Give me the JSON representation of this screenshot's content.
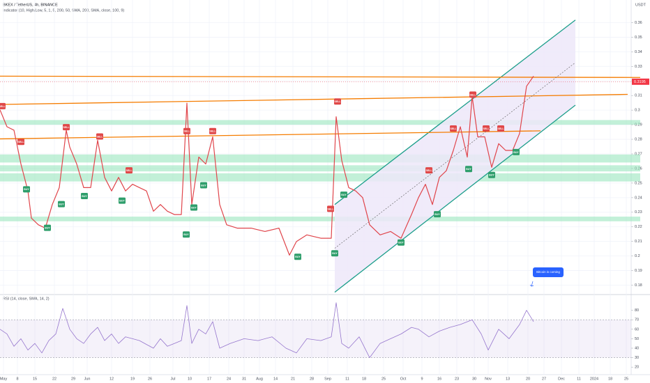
{
  "chart_data": [
    {
      "type": "line",
      "title": "BKEX / TetherUS, 4h, BINANCE",
      "subtitle": "Indicator (10, High/Low, 5, 1, 5, 200, 50, SMA, 200, SMA, close, 100, 9)",
      "unit": "USDT",
      "annotation": "Bitcoin is coming",
      "xlim": [
        0,
        905
      ],
      "ylim": [
        0.175,
        0.365
      ],
      "yticks": [
        0.18,
        0.19,
        0.2,
        0.21,
        0.22,
        0.23,
        0.24,
        0.25,
        0.26,
        0.27,
        0.28,
        0.29,
        0.3,
        0.31,
        0.32,
        0.33,
        0.34,
        0.35,
        0.36
      ],
      "xticks": [
        {
          "value": 5,
          "label": "May"
        },
        {
          "value": 25,
          "label": "8"
        },
        {
          "value": 50,
          "label": "15"
        },
        {
          "value": 78,
          "label": "22"
        },
        {
          "value": 105,
          "label": "29"
        },
        {
          "value": 125,
          "label": "Jun"
        },
        {
          "value": 160,
          "label": "12"
        },
        {
          "value": 190,
          "label": "19"
        },
        {
          "value": 215,
          "label": "26"
        },
        {
          "value": 248,
          "label": "Jul"
        },
        {
          "value": 272,
          "label": "10"
        },
        {
          "value": 300,
          "label": "17"
        },
        {
          "value": 328,
          "label": "24"
        },
        {
          "value": 350,
          "label": "31"
        },
        {
          "value": 372,
          "label": "Aug"
        },
        {
          "value": 395,
          "label": "14"
        },
        {
          "value": 420,
          "label": "21"
        },
        {
          "value": 447,
          "label": "28"
        },
        {
          "value": 470,
          "label": "Sep"
        },
        {
          "value": 498,
          "label": "11"
        },
        {
          "value": 522,
          "label": "18"
        },
        {
          "value": 550,
          "label": "25"
        },
        {
          "value": 578,
          "label": "Oct"
        },
        {
          "value": 605,
          "label": "9"
        },
        {
          "value": 630,
          "label": "16"
        },
        {
          "value": 655,
          "label": "23"
        },
        {
          "value": 680,
          "label": "30"
        },
        {
          "value": 700,
          "label": "Nov"
        },
        {
          "value": 728,
          "label": "13"
        },
        {
          "value": 757,
          "label": "20"
        },
        {
          "value": 780,
          "label": "27"
        },
        {
          "value": 805,
          "label": "Dec"
        },
        {
          "value": 830,
          "label": "11"
        },
        {
          "value": 852,
          "label": "2024"
        },
        {
          "value": 875,
          "label": "18"
        },
        {
          "value": 898,
          "label": "25"
        }
      ],
      "grid": true,
      "last_price": 0.3195,
      "last_price_color": "#f23645",
      "series": [
        {
          "name": "BKEXUSDT",
          "color": "#e0454b",
          "x": [
            0,
            10,
            20,
            30,
            40,
            45,
            55,
            65,
            75,
            85,
            95,
            100,
            110,
            120,
            130,
            140,
            150,
            160,
            170,
            180,
            190,
            200,
            210,
            220,
            230,
            240,
            250,
            260,
            268,
            275,
            285,
            295,
            305,
            315,
            325,
            340,
            360,
            380,
            400,
            415,
            425,
            440,
            460,
            475,
            482,
            490,
            500,
            510,
            520,
            530,
            545,
            560,
            575,
            590,
            600,
            610,
            620,
            630,
            640,
            650,
            660,
            670,
            677,
            685,
            695,
            705,
            715,
            725,
            735,
            745,
            755,
            765
          ],
          "values": [
            0.3002,
            0.2886,
            0.2863,
            0.2631,
            0.2446,
            0.226,
            0.2214,
            0.2191,
            0.2353,
            0.2469,
            0.2863,
            0.2747,
            0.2631,
            0.2469,
            0.2469,
            0.2793,
            0.2539,
            0.2446,
            0.2539,
            0.2446,
            0.2492,
            0.2469,
            0.2446,
            0.2307,
            0.2353,
            0.2307,
            0.2284,
            0.2284,
            0.3048,
            0.2353,
            0.2678,
            0.2631,
            0.2817,
            0.2353,
            0.2214,
            0.2191,
            0.2191,
            0.2168,
            0.2191,
            0.2006,
            0.2099,
            0.2145,
            0.2122,
            0.2122,
            0.2955,
            0.2655,
            0.2469,
            0.2446,
            0.24,
            0.2214,
            0.2145,
            0.2168,
            0.2122,
            0.2284,
            0.24,
            0.2492,
            0.2353,
            0.2539,
            0.2585,
            0.2724,
            0.2886,
            0.2678,
            0.3094,
            0.2817,
            0.2817,
            0.2608,
            0.277,
            0.2724,
            0.2724,
            0.284,
            0.3164,
            0.3233
          ]
        }
      ],
      "zones": [
        {
          "from": 0.29,
          "to": 0.2932
        },
        {
          "from": 0.2641,
          "to": 0.2696
        },
        {
          "from": 0.258,
          "to": 0.2622
        },
        {
          "from": 0.2511,
          "to": 0.2567
        },
        {
          "from": 0.2238,
          "to": 0.227
        }
      ],
      "zone_color": "#8fe3b8",
      "channel": {
        "x": [
          480,
          825
        ],
        "upper": [
          0.2353,
          0.3618
        ],
        "lower": [
          0.1752,
          0.3034
        ],
        "color": "#1b9e8a",
        "fill": "#ede7f9"
      },
      "trendlines": [
        {
          "x": [
            0,
            918
          ],
          "y": [
            0.3233,
            0.3224
          ],
          "color": "#f57c00"
        },
        {
          "x": [
            0,
            900
          ],
          "y": [
            0.3039,
            0.3108
          ],
          "color": "#f57c00"
        },
        {
          "x": [
            0,
            775
          ],
          "y": [
            0.2803,
            0.2858
          ],
          "color": "#f57c00"
        },
        {
          "x": [
            480,
            825
          ],
          "y": [
            0.2053,
            0.3326
          ],
          "color": "#555555",
          "dashed": true
        }
      ],
      "signals": [
        {
          "x": 3,
          "y": 0.3025,
          "label": "SELL"
        },
        {
          "x": 30,
          "y": 0.278,
          "label": "SELL"
        },
        {
          "x": 38,
          "y": 0.2455,
          "label": "BUY"
        },
        {
          "x": 68,
          "y": 0.2191,
          "label": "BUY"
        },
        {
          "x": 88,
          "y": 0.2353,
          "label": "BUY"
        },
        {
          "x": 95,
          "y": 0.2881,
          "label": "SELL"
        },
        {
          "x": 143,
          "y": 0.2817,
          "label": "SELL"
        },
        {
          "x": 121,
          "y": 0.2409,
          "label": "BUY"
        },
        {
          "x": 185,
          "y": 0.2585,
          "label": "SELL"
        },
        {
          "x": 175,
          "y": 0.2377,
          "label": "BUY"
        },
        {
          "x": 268,
          "y": 0.2854,
          "label": "SELL"
        },
        {
          "x": 278,
          "y": 0.233,
          "label": "BUY"
        },
        {
          "x": 292,
          "y": 0.2483,
          "label": "BUY"
        },
        {
          "x": 305,
          "y": 0.2854,
          "label": "SELL"
        },
        {
          "x": 267,
          "y": 0.2145,
          "label": "BUY"
        },
        {
          "x": 427,
          "y": 0.1992,
          "label": "BUY"
        },
        {
          "x": 474,
          "y": 0.2321,
          "label": "SELL"
        },
        {
          "x": 480,
          "y": 0.2016,
          "label": "BUY"
        },
        {
          "x": 484,
          "y": 0.3057,
          "label": "SELL"
        },
        {
          "x": 493,
          "y": 0.2418,
          "label": "BUY"
        },
        {
          "x": 575,
          "y": 0.209,
          "label": "BUY"
        },
        {
          "x": 615,
          "y": 0.2585,
          "label": "SELL"
        },
        {
          "x": 627,
          "y": 0.2284,
          "label": "BUY"
        },
        {
          "x": 650,
          "y": 0.2872,
          "label": "SELL"
        },
        {
          "x": 672,
          "y": 0.2594,
          "label": "BUY"
        },
        {
          "x": 678,
          "y": 0.3104,
          "label": "SELL"
        },
        {
          "x": 697,
          "y": 0.2872,
          "label": "SELL"
        },
        {
          "x": 705,
          "y": 0.2553,
          "label": "BUY"
        },
        {
          "x": 718,
          "y": 0.2872,
          "label": "SELL"
        },
        {
          "x": 740,
          "y": 0.271,
          "label": "BUY"
        }
      ],
      "buy_color": "#2e9e6b",
      "sell_color": "#e04848"
    },
    {
      "type": "line",
      "title": "RSI (14, close, SMA, 14, 2)",
      "xlim": [
        0,
        905
      ],
      "ylim": [
        15,
        90
      ],
      "yticks": [
        20,
        30,
        40,
        50,
        60,
        70,
        80
      ],
      "bands": [
        30,
        70
      ],
      "band_color": "#7e57c2",
      "series": [
        {
          "name": "RSI",
          "color": "#9575cd",
          "x": [
            0,
            10,
            20,
            30,
            40,
            50,
            60,
            70,
            80,
            90,
            100,
            110,
            120,
            130,
            140,
            150,
            160,
            170,
            180,
            190,
            200,
            210,
            220,
            230,
            240,
            250,
            260,
            268,
            275,
            285,
            295,
            305,
            315,
            330,
            350,
            370,
            390,
            410,
            425,
            440,
            460,
            475,
            482,
            490,
            500,
            515,
            530,
            545,
            560,
            575,
            590,
            600,
            615,
            630,
            645,
            660,
            677,
            690,
            700,
            715,
            730,
            745,
            755,
            765
          ],
          "values": [
            60,
            55,
            42,
            50,
            38,
            45,
            35,
            48,
            55,
            82,
            60,
            50,
            45,
            55,
            62,
            48,
            55,
            45,
            52,
            50,
            48,
            44,
            40,
            50,
            42,
            45,
            48,
            85,
            45,
            60,
            55,
            68,
            40,
            45,
            50,
            48,
            52,
            40,
            35,
            50,
            48,
            52,
            88,
            45,
            40,
            52,
            30,
            45,
            50,
            55,
            62,
            60,
            52,
            58,
            62,
            65,
            70,
            55,
            38,
            60,
            50,
            65,
            80,
            68
          ]
        }
      ]
    }
  ]
}
